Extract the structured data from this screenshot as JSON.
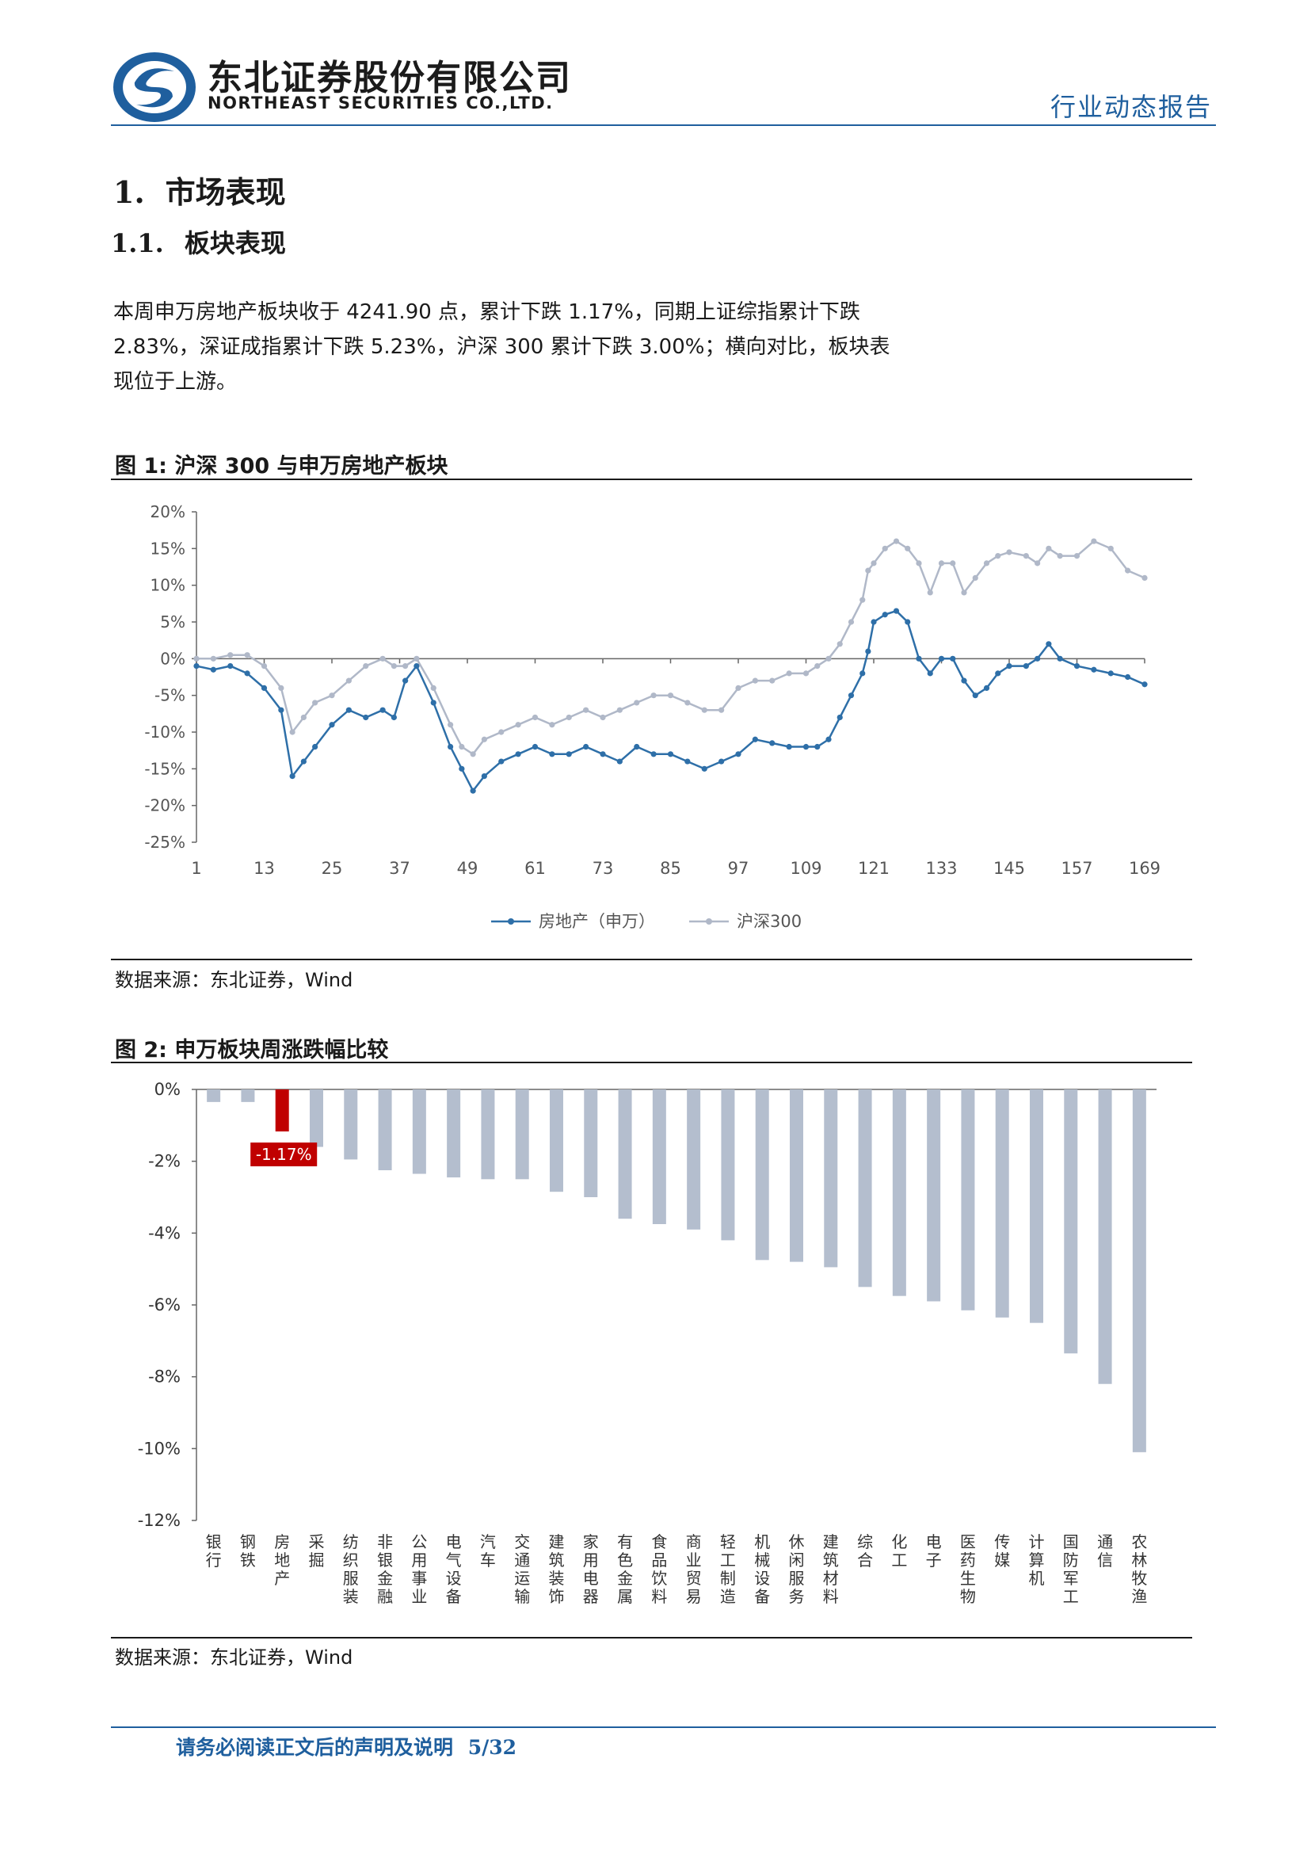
{
  "header": {
    "company_cn": "东北证券股份有限公司",
    "company_en": "NORTHEAST SECURITIES CO.,LTD.",
    "report_type": "行业动态报告",
    "brand_color": "#1f5f9e"
  },
  "section": {
    "h1_num": "1.",
    "h1_title": "市场表现",
    "h2_num": "1.1.",
    "h2_title": "板块表现"
  },
  "paragraph": {
    "line1": "本周申万房地产板块收于 4241.90 点，累计下跌 1.17%，同期上证综指累计下跌",
    "line2": "2.83%，深证成指累计下跌 5.23%，沪深 300 累计下跌 3.00%；横向对比，板块表",
    "line3": "现位于上游。"
  },
  "figure1": {
    "label": "图 1:",
    "title": "沪深 300 与申万房地产板块",
    "source": "数据来源：东北证券，Wind"
  },
  "figure2": {
    "label": "图 2:",
    "title": "申万板块周涨跌幅比较",
    "source": "数据来源：东北证券，Wind"
  },
  "footer": {
    "disclaimer": "请务必阅读正文后的声明及说明",
    "page": "5/32"
  },
  "chart_data": [
    {
      "type": "line",
      "x_ticks": [
        1,
        13,
        25,
        37,
        49,
        61,
        73,
        85,
        97,
        109,
        121,
        133,
        145,
        157,
        169
      ],
      "y_ticks": [
        "20%",
        "15%",
        "10%",
        "5%",
        "0%",
        "-5%",
        "-10%",
        "-15%",
        "-20%",
        "-25%"
      ],
      "ylim": [
        -25,
        20
      ],
      "xlim": [
        1,
        169
      ],
      "legend_position": "bottom",
      "series": [
        {
          "name": "房地产（申万）",
          "color": "#2e6fa8",
          "x": [
            1,
            4,
            7,
            10,
            13,
            16,
            18,
            20,
            22,
            25,
            28,
            31,
            34,
            36,
            38,
            40,
            43,
            46,
            48,
            50,
            52,
            55,
            58,
            61,
            64,
            67,
            70,
            73,
            76,
            79,
            82,
            85,
            88,
            91,
            94,
            97,
            100,
            103,
            106,
            109,
            111,
            113,
            115,
            117,
            119,
            120,
            121,
            123,
            125,
            127,
            129,
            131,
            133,
            135,
            137,
            139,
            141,
            143,
            145,
            148,
            150,
            152,
            154,
            157,
            160,
            163,
            166,
            169
          ],
          "values": [
            -1,
            -1.5,
            -1,
            -2,
            -4,
            -7,
            -16,
            -14,
            -12,
            -9,
            -7,
            -8,
            -7,
            -8,
            -3,
            -1,
            -6,
            -12,
            -15,
            -18,
            -16,
            -14,
            -13,
            -12,
            -13,
            -13,
            -12,
            -13,
            -14,
            -12,
            -13,
            -13,
            -14,
            -15,
            -14,
            -13,
            -11,
            -11.5,
            -12,
            -12,
            -12,
            -11,
            -8,
            -5,
            -2,
            1,
            5,
            6,
            6.5,
            5,
            0,
            -2,
            0,
            0,
            -3,
            -5,
            -4,
            -2,
            -1,
            -1,
            0,
            2,
            0,
            -1,
            -1.5,
            -2,
            -2.5,
            -3.5
          ]
        },
        {
          "name": "沪深300",
          "color": "#b0b8c8",
          "x": [
            1,
            4,
            7,
            10,
            13,
            16,
            18,
            20,
            22,
            25,
            28,
            31,
            34,
            36,
            38,
            40,
            43,
            46,
            48,
            50,
            52,
            55,
            58,
            61,
            64,
            67,
            70,
            73,
            76,
            79,
            82,
            85,
            88,
            91,
            94,
            97,
            100,
            103,
            106,
            109,
            111,
            113,
            115,
            117,
            119,
            120,
            121,
            123,
            125,
            127,
            129,
            131,
            133,
            135,
            137,
            139,
            141,
            143,
            145,
            148,
            150,
            152,
            154,
            157,
            160,
            163,
            166,
            169
          ],
          "values": [
            0,
            0,
            0.5,
            0.5,
            -1,
            -4,
            -10,
            -8,
            -6,
            -5,
            -3,
            -1,
            0,
            -1,
            -1,
            0,
            -4,
            -9,
            -12,
            -13,
            -11,
            -10,
            -9,
            -8,
            -9,
            -8,
            -7,
            -8,
            -7,
            -6,
            -5,
            -5,
            -6,
            -7,
            -7,
            -4,
            -3,
            -3,
            -2,
            -2,
            -1,
            0,
            2,
            5,
            8,
            12,
            13,
            15,
            16,
            15,
            13,
            9,
            13,
            13,
            9,
            11,
            13,
            14,
            14.5,
            14,
            13,
            15,
            14,
            14,
            16,
            15,
            12,
            11
          ]
        }
      ]
    },
    {
      "type": "bar",
      "y_ticks": [
        "0%",
        "-2%",
        "-4%",
        "-6%",
        "-8%",
        "-10%",
        "-12%"
      ],
      "ylim": [
        -12,
        0
      ],
      "highlight_index": 2,
      "highlight_label": "-1.17%",
      "highlight_color": "#c00000",
      "bar_color": "#b4bece",
      "categories": [
        "银行",
        "钢铁",
        "房地产",
        "采掘",
        "纺织服装",
        "非银金融",
        "公用事业",
        "电气设备",
        "汽车",
        "交通运输",
        "建筑装饰",
        "家用电器",
        "有色金属",
        "食品饮料",
        "商业贸易",
        "轻工制造",
        "机械设备",
        "休闲服务",
        "建筑材料",
        "综合",
        "化工",
        "电子",
        "医药生物",
        "传媒",
        "计算机",
        "国防军工",
        "通信",
        "农林牧渔"
      ],
      "values": [
        -0.35,
        -0.35,
        -1.17,
        -1.6,
        -1.95,
        -2.25,
        -2.35,
        -2.45,
        -2.5,
        -2.5,
        -2.85,
        -3.0,
        -3.6,
        -3.75,
        -3.9,
        -4.2,
        -4.75,
        -4.8,
        -4.95,
        -5.5,
        -5.75,
        -5.9,
        -6.15,
        -6.35,
        -6.5,
        -7.35,
        -8.2,
        -10.1
      ]
    }
  ]
}
